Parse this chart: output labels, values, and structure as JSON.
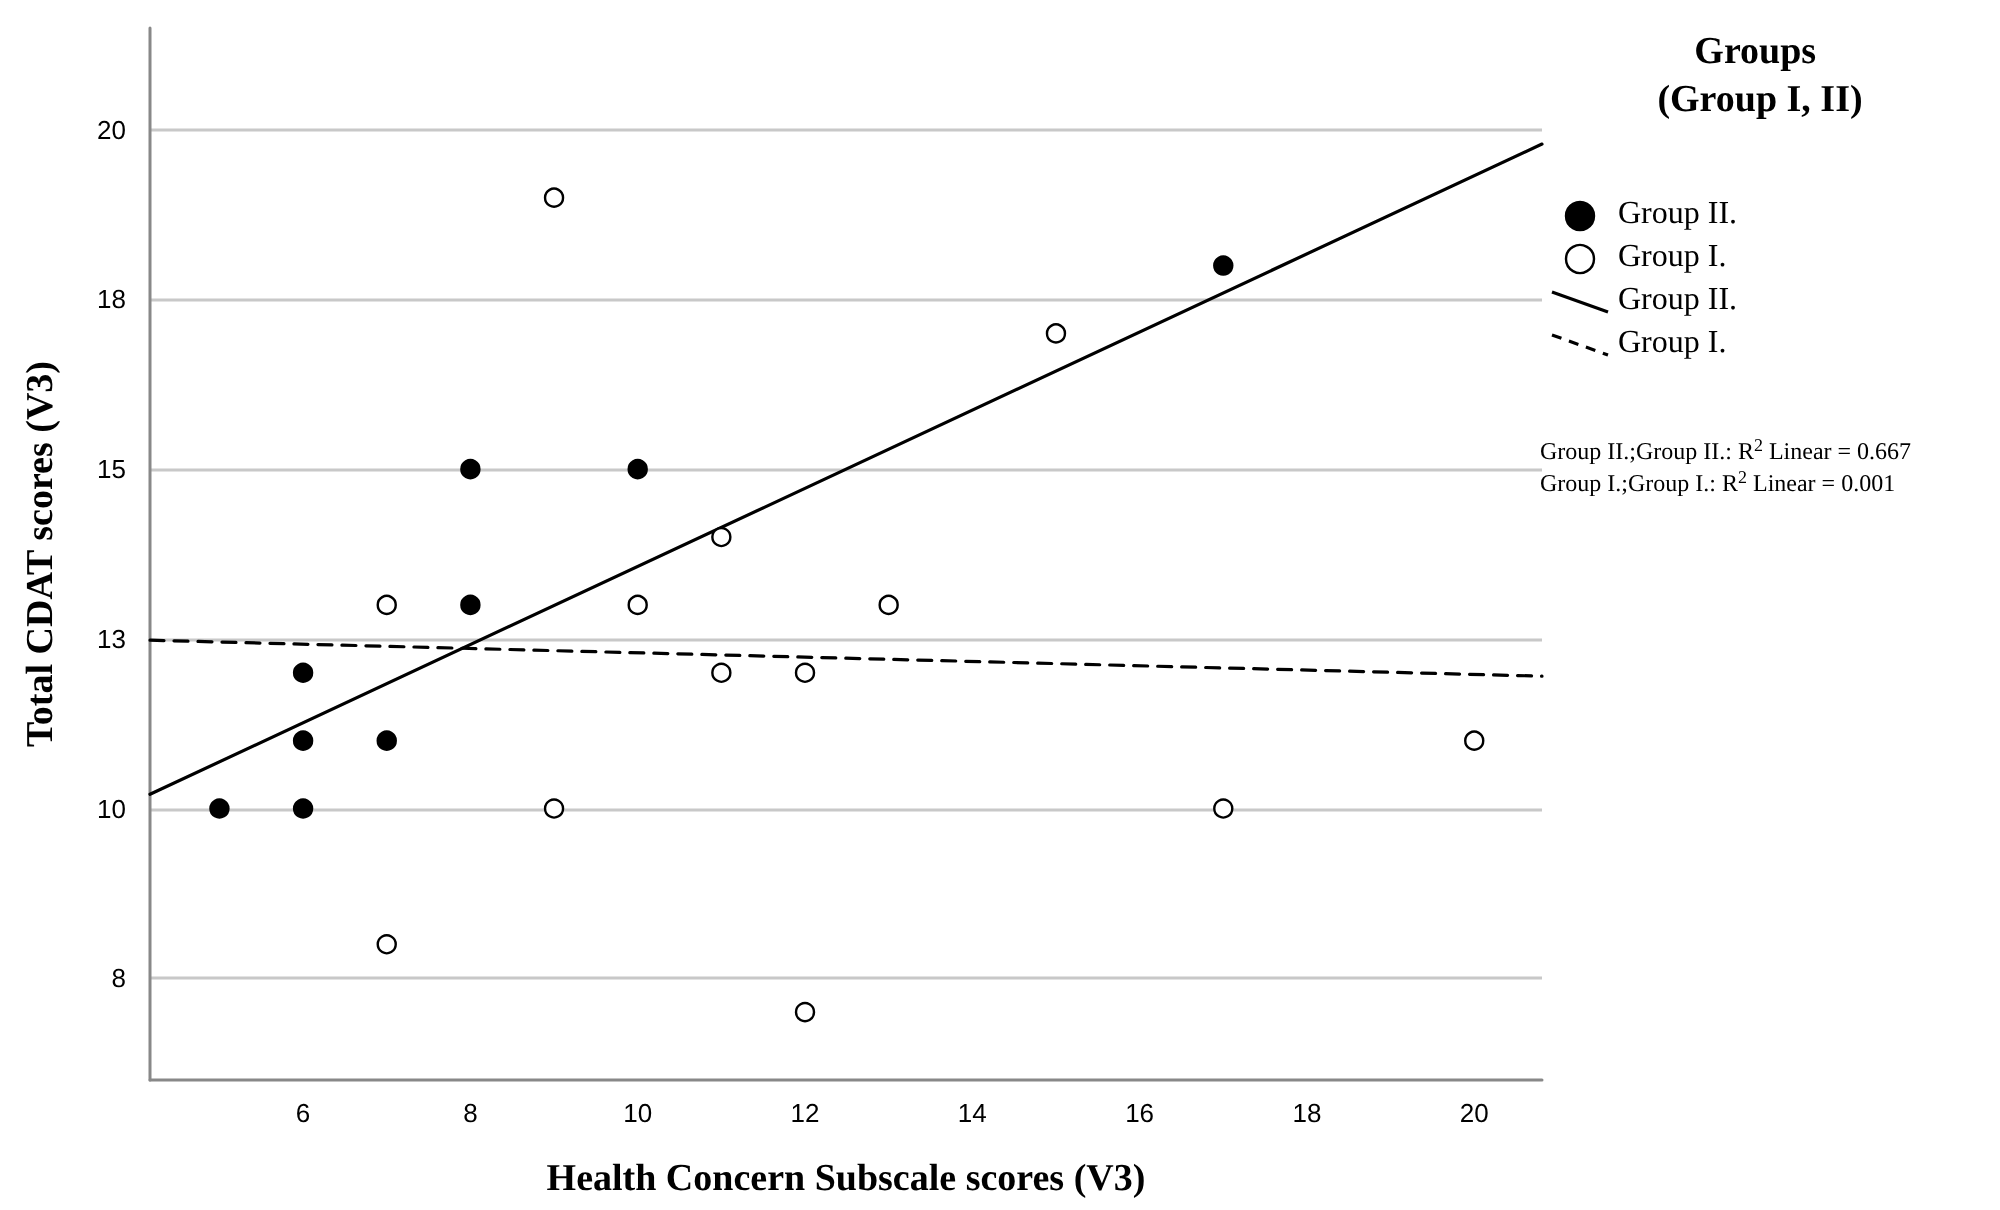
{
  "chart_data": {
    "type": "scatter",
    "xlabel": "Health Concern Subscale scores (V3)",
    "ylabel": "Total CDAT scores (V3)",
    "legend_title": "Groups (Group I, II)",
    "legend": "right",
    "grid": "y",
    "xlim": [
      4.17,
      20.81
    ],
    "ylim": [
      6,
      21.5
    ],
    "xticks": [
      6,
      8,
      10,
      12,
      14,
      16,
      18,
      20
    ],
    "yticks": [
      {
        "value": 7.5,
        "label": "8"
      },
      10,
      {
        "value": 12.5,
        "label": "13"
      },
      15,
      {
        "value": 17.5,
        "label": "18"
      },
      20
    ],
    "series": [
      {
        "name": "Group II.",
        "marker": "circle",
        "color": "#000000",
        "x": [
          5,
          6,
          6,
          6,
          7,
          8,
          8,
          10,
          17
        ],
        "values": [
          10,
          10,
          11,
          12,
          11,
          13,
          15,
          15,
          18
        ]
      },
      {
        "name": "Group I.",
        "marker": "circle",
        "color": "#ffffff",
        "x": [
          7,
          7,
          9,
          9,
          10,
          11,
          11,
          12,
          12,
          13,
          15,
          17,
          20
        ],
        "values": [
          8,
          13,
          10,
          19,
          13,
          14,
          12,
          12,
          7,
          13,
          17,
          10,
          11
        ]
      },
      {
        "name": "Group II.",
        "type": "line",
        "marker": "none",
        "color": "#000000",
        "line_style": "solid",
        "x": [
          4.17,
          20.81
        ],
        "values": [
          10.21,
          19.79
        ]
      },
      {
        "name": "Group I.",
        "type": "line",
        "marker": "none",
        "color": "#000000",
        "line_style": "dashed",
        "x": [
          4.17,
          20.81
        ],
        "values": [
          12.48,
          11.95
        ]
      }
    ],
    "annotations": [
      "Group II.;Group II.: R$^{2}$ Linear = 0.667",
      "Group I.;Group I.: R$^{2}$ Linear = 0.001"
    ]
  }
}
